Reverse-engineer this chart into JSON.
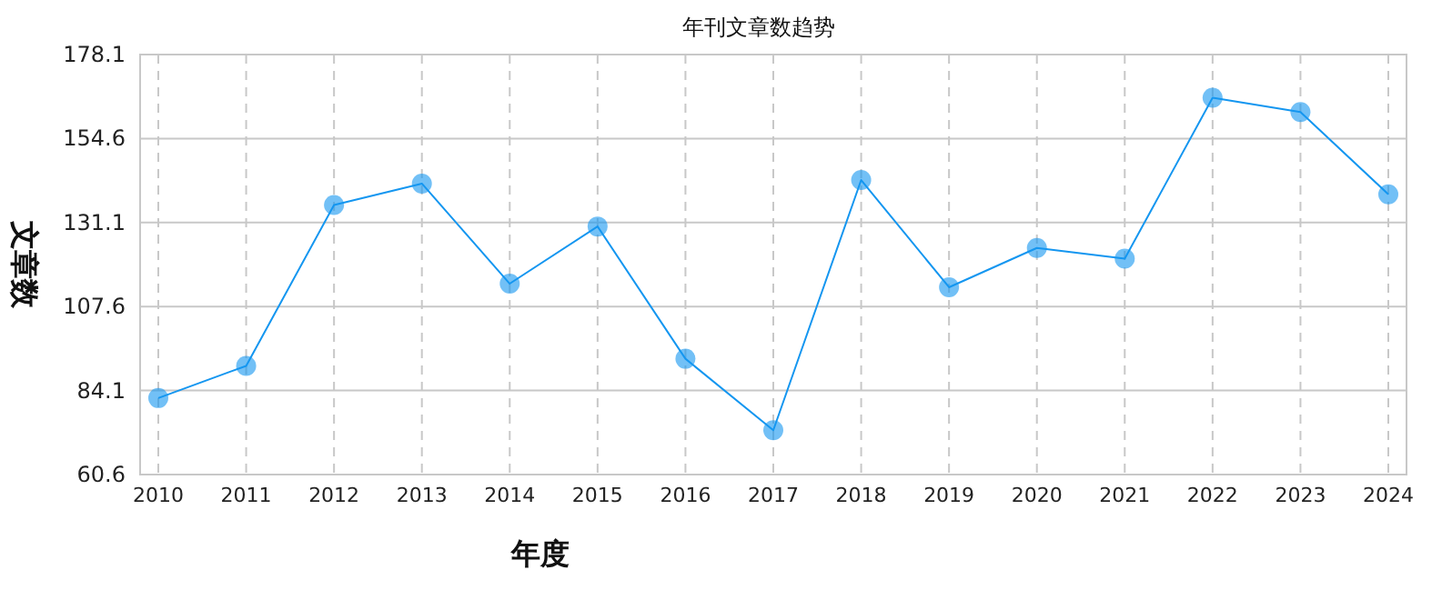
{
  "chart_data": {
    "type": "line",
    "title": "年刊文章数趋势",
    "xlabel": "年度",
    "ylabel": "文章数",
    "categories": [
      "2010",
      "2011",
      "2012",
      "2013",
      "2014",
      "2015",
      "2016",
      "2017",
      "2018",
      "2019",
      "2020",
      "2021",
      "2022",
      "2023",
      "2024"
    ],
    "series": [
      {
        "color": "#1496f0",
        "values": [
          82,
          91,
          136,
          142,
          114,
          130,
          93,
          73,
          143,
          113,
          124,
          121,
          166,
          162,
          139
        ]
      }
    ],
    "ylim": [
      60.6,
      178.1
    ],
    "yticks": [
      60.6,
      84.1,
      107.6,
      131.1,
      154.6,
      178.1
    ],
    "grid": true,
    "marker": "circle",
    "line_style": "solid"
  }
}
